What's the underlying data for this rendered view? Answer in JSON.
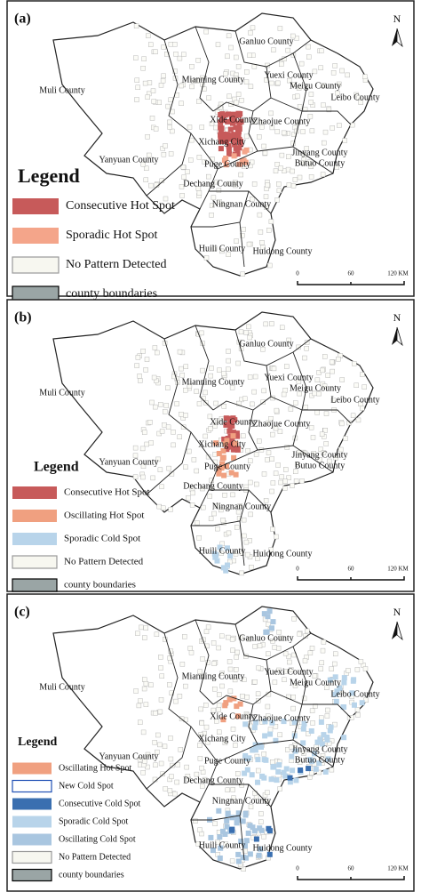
{
  "panels": [
    {
      "label": "(a)",
      "counties": [
        "Ganluo County",
        "Mianning County",
        "Yuexi County",
        "Meigu County",
        "Leibo County",
        "Muli County",
        "Xide County",
        "Zhaojue County",
        "Xichang City",
        "Yanyuan County",
        "Jinyang County",
        "Butuo County",
        "Puge County",
        "Dechang County",
        "Ningnan County",
        "Huili County",
        "Huidong County"
      ],
      "legend": {
        "title": "Legend",
        "items": [
          {
            "label": "Consecutive Hot Spot",
            "color": "#c75a5a"
          },
          {
            "label": "Sporadic Hot Spot",
            "color": "#f4a58a"
          },
          {
            "label": "No Pattern Detected",
            "color": "#f7f7f0",
            "border": "#999999"
          },
          {
            "label": "county boundaries",
            "color": "#9aa5a5",
            "border": "#000000"
          }
        ]
      },
      "north": "N",
      "scale": [
        "0",
        "60",
        "120 KM"
      ]
    },
    {
      "label": "(b)",
      "counties": [
        "Ganluo County",
        "Mianning County",
        "Yuexi County",
        "Meigu County",
        "Leibo County",
        "Muli County",
        "Xide County",
        "Zhaojue County",
        "Xichang City",
        "Yanyuan County",
        "Jinyang County",
        "Butuo County",
        "Puge County",
        "Dechang County",
        "Ningnan County",
        "Huili County",
        "Huidong County"
      ],
      "legend": {
        "title": "Legend",
        "items": [
          {
            "label": "Consecutive Hot Spot",
            "color": "#c75a5a"
          },
          {
            "label": "Oscillating Hot Spot",
            "color": "#f0a080"
          },
          {
            "label": "Sporadic Cold Spot",
            "color": "#b8d4ea"
          },
          {
            "label": "No Pattern Detected",
            "color": "#f7f7f0",
            "border": "#999999"
          },
          {
            "label": "county boundaries",
            "color": "#9aa5a5",
            "border": "#000000"
          }
        ]
      },
      "north": "N",
      "scale": [
        "0",
        "60",
        "120 KM"
      ]
    },
    {
      "label": "(c)",
      "counties": [
        "Ganluo County",
        "Mianning County",
        "Yuexi County",
        "Meigu County",
        "Leibo County",
        "Muli County",
        "Xide County",
        "Zhaojue County",
        "Xichang City",
        "Yanyuan County",
        "Jinyang County",
        "Butuo County",
        "Puge County",
        "Dechang County",
        "Ningnan County",
        "Huili County",
        "Huidong County"
      ],
      "legend": {
        "title": "Legend",
        "items": [
          {
            "label": "Oscillating Hot Spot",
            "color": "#f0a080"
          },
          {
            "label": "New Cold Spot",
            "color": "#ffffff",
            "border": "#1f4fb4"
          },
          {
            "label": "Consecutive Cold Spot",
            "color": "#3a6fb0"
          },
          {
            "label": "Sporadic Cold Spot",
            "color": "#b8d4ea"
          },
          {
            "label": "Oscillating Cold Spot",
            "color": "#a9c6e0"
          },
          {
            "label": "No Pattern Detected",
            "color": "#f7f7f0",
            "border": "#999999"
          },
          {
            "label": "county boundaries",
            "color": "#9aa5a5",
            "border": "#000000"
          }
        ]
      },
      "north": "N",
      "scale": [
        "0",
        "60",
        "120 KM"
      ]
    }
  ]
}
